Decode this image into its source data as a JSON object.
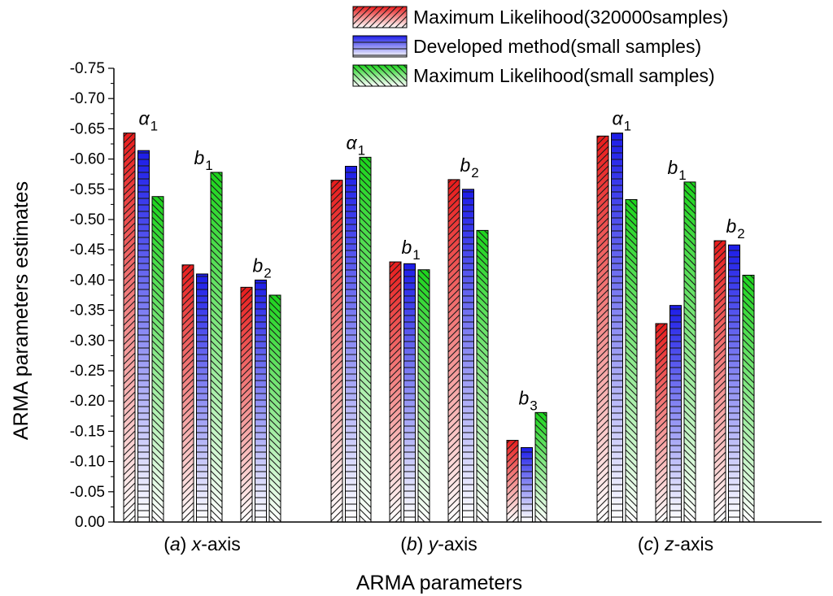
{
  "chart_data": {
    "type": "bar",
    "title": "",
    "xlabel": "ARMA parameters",
    "ylabel": "ARMA parameters estimates",
    "ylim": [
      0.0,
      -0.75
    ],
    "ytick_step": -0.05,
    "yticks": [
      "0.00",
      "-0.05",
      "-0.10",
      "-0.15",
      "-0.20",
      "-0.25",
      "-0.30",
      "-0.35",
      "-0.40",
      "-0.45",
      "-0.50",
      "-0.55",
      "-0.60",
      "-0.65",
      "-0.70",
      "-0.75"
    ],
    "grid": false,
    "legend_position": "top-right",
    "series": [
      {
        "name": "Maximum Likelihood(320000samples)",
        "color": "#e81c1c",
        "pattern": "diagonal-up"
      },
      {
        "name": "Developed method(small samples)",
        "color": "#1c1ce8",
        "pattern": "horizontal"
      },
      {
        "name": "Maximum Likelihood(small samples)",
        "color": "#1cd41c",
        "pattern": "diagonal-down"
      }
    ],
    "groups": [
      {
        "label_prefix": "(",
        "label_paren": "a",
        "label_mid": ") ",
        "label_axis": "x",
        "label_suffix": "-axis",
        "params": [
          {
            "name": "α",
            "sub": "1",
            "values": [
              -0.643,
              -0.614,
              -0.538
            ]
          },
          {
            "name": "b",
            "sub": "1",
            "values": [
              -0.425,
              -0.41,
              -0.578
            ]
          },
          {
            "name": "b",
            "sub": "2",
            "values": [
              -0.388,
              -0.4,
              -0.375
            ]
          }
        ]
      },
      {
        "label_prefix": "(",
        "label_paren": "b",
        "label_mid": ") ",
        "label_axis": "y",
        "label_suffix": "-axis",
        "params": [
          {
            "name": "α",
            "sub": "1",
            "values": [
              -0.565,
              -0.588,
              -0.603
            ]
          },
          {
            "name": "b",
            "sub": "1",
            "values": [
              -0.43,
              -0.427,
              -0.417
            ]
          },
          {
            "name": "b",
            "sub": "2",
            "values": [
              -0.566,
              -0.55,
              -0.482
            ]
          },
          {
            "name": "b",
            "sub": "3",
            "values": [
              -0.135,
              -0.123,
              -0.181
            ]
          }
        ]
      },
      {
        "label_prefix": "(",
        "label_paren": "c",
        "label_mid": ") ",
        "label_axis": "z",
        "label_suffix": "-axis",
        "params": [
          {
            "name": "α",
            "sub": "1",
            "values": [
              -0.638,
              -0.643,
              -0.533
            ]
          },
          {
            "name": "b",
            "sub": "1",
            "values": [
              -0.328,
              -0.358,
              -0.562
            ]
          },
          {
            "name": "b",
            "sub": "2",
            "values": [
              -0.465,
              -0.458,
              -0.408
            ]
          }
        ]
      }
    ]
  }
}
